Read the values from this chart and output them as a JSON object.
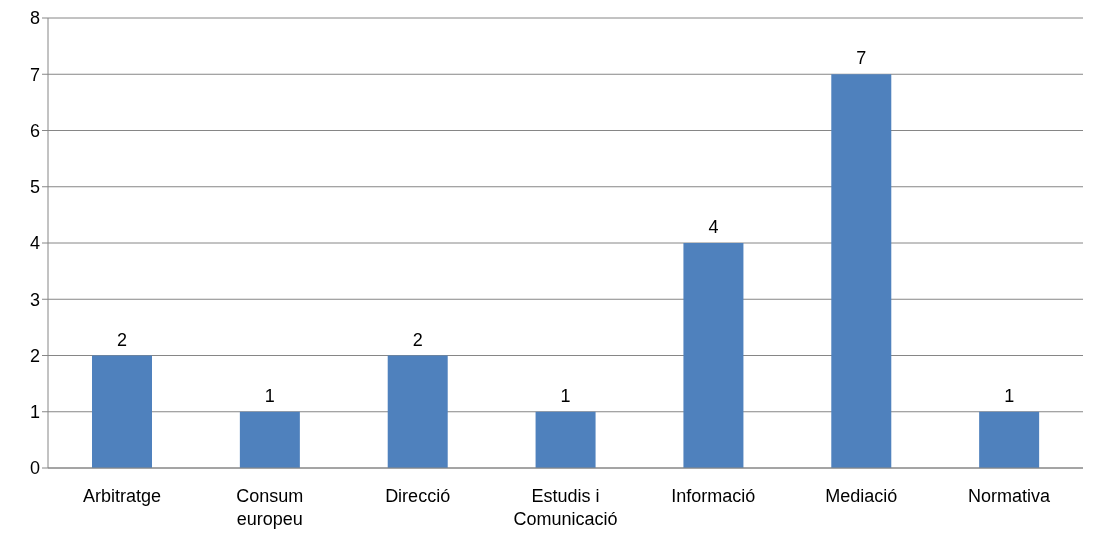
{
  "chart_data": {
    "type": "bar",
    "categories": [
      "Arbitratge",
      "Consum europeu",
      "Direcció",
      "Estudis i Comunicació",
      "Informació",
      "Mediació",
      "Normativa"
    ],
    "values": [
      2,
      1,
      2,
      1,
      4,
      7,
      1
    ],
    "color": "#4f81bd",
    "ylim": [
      0,
      8
    ],
    "yticks": [
      0,
      1,
      2,
      3,
      4,
      5,
      6,
      7,
      8
    ],
    "grid": "y",
    "data_labels": true
  }
}
